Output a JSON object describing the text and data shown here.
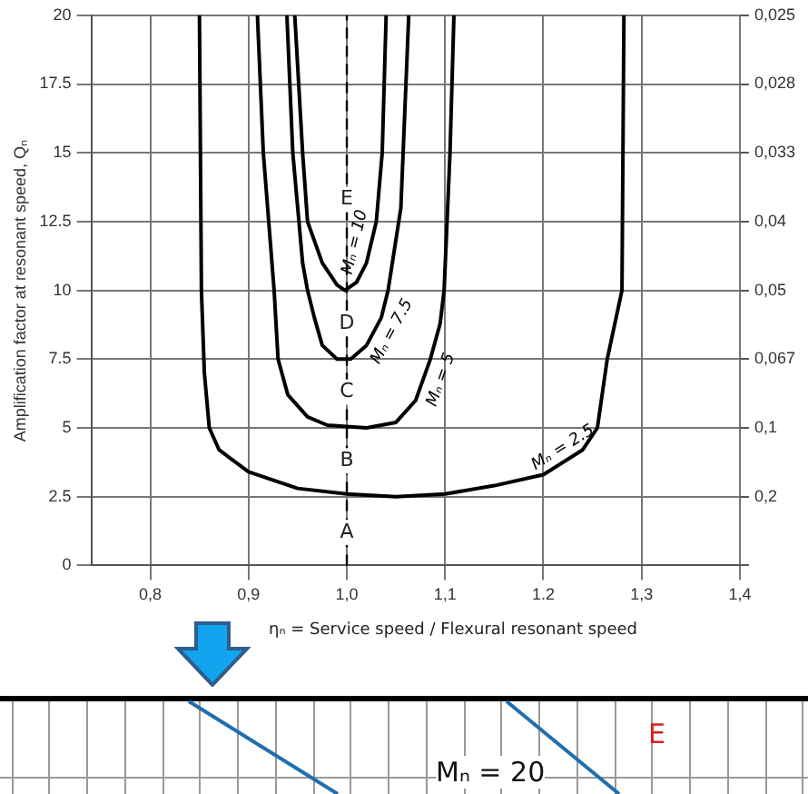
{
  "chart_data": {
    "type": "line",
    "xlabel": "ηₙ = Service speed / Flexural resonant speed",
    "ylabel": "Amplification factor at resonant speed, Qₙ",
    "xlim": [
      0.74,
      1.4
    ],
    "ylim": [
      0,
      20
    ],
    "xticks": [
      {
        "value": 0.8,
        "label": "0,8"
      },
      {
        "value": 0.9,
        "label": "0,9"
      },
      {
        "value": 1.0,
        "label": "1,0"
      },
      {
        "value": 1.1,
        "label": "1,1"
      },
      {
        "value": 1.2,
        "label": "1.2"
      },
      {
        "value": 1.3,
        "label": "1,3"
      },
      {
        "value": 1.4,
        "label": "1,4"
      }
    ],
    "yticks": [
      0,
      2.5,
      5,
      7.5,
      10,
      12.5,
      15,
      17.5,
      20
    ],
    "grid": true,
    "marker": "none",
    "legend": false,
    "series": [
      {
        "name": "Mₙ = 10",
        "color": "#000000",
        "x": [
          0.947,
          0.955,
          0.96,
          0.975,
          0.99,
          0.998,
          1.01,
          1.02,
          1.03,
          1.036,
          1.04
        ],
        "values": [
          20,
          15,
          12.5,
          11,
          10.2,
          10,
          10.3,
          11,
          12.5,
          15,
          20
        ]
      },
      {
        "name": "Mₙ = 7.5",
        "color": "#000000",
        "x": [
          0.939,
          0.945,
          0.955,
          0.96,
          0.967,
          0.975,
          0.99,
          1.004,
          1.02,
          1.035,
          1.042,
          1.055,
          1.063
        ],
        "values": [
          20,
          15,
          11,
          10,
          9,
          8,
          7.5,
          7.5,
          8,
          9,
          10,
          13,
          20
        ]
      },
      {
        "name": "Mₙ = 5",
        "color": "#000000",
        "x": [
          0.909,
          0.915,
          0.926,
          0.93,
          0.94,
          0.96,
          0.98,
          1.02,
          1.05,
          1.07,
          1.085,
          1.095,
          1.099,
          1.105,
          1.109
        ],
        "values": [
          20,
          15,
          10,
          7.5,
          6.2,
          5.4,
          5.1,
          5,
          5.2,
          6,
          7.5,
          8.8,
          10,
          15,
          20
        ]
      },
      {
        "name": "Mₙ = 2.5",
        "color": "#000000",
        "x": [
          0.85,
          0.852,
          0.855,
          0.86,
          0.87,
          0.9,
          0.95,
          1.0,
          1.05,
          1.1,
          1.15,
          1.2,
          1.24,
          1.255,
          1.265,
          1.28,
          1.282
        ],
        "values": [
          20,
          10,
          7,
          5,
          4.2,
          3.4,
          2.8,
          2.6,
          2.5,
          2.6,
          2.9,
          3.3,
          4.2,
          5,
          7.5,
          10,
          20
        ]
      }
    ],
    "ref_lines": [
      {
        "axis": "x",
        "value": 1.0,
        "color": "#000000",
        "line_style": "dashed"
      }
    ],
    "annotations": [
      {
        "text": "A",
        "y": 1.2
      },
      {
        "text": "B",
        "y": 3.8
      },
      {
        "text": "C",
        "y": 6.3
      },
      {
        "text": "D",
        "y": 8.8
      },
      {
        "text": "E",
        "y": 13.3
      },
      "E",
      "Mₙ = 20"
    ],
    "y2_categories": [
      "0,025",
      "0,028",
      "0,033",
      "0,04",
      "0,05",
      "0,067",
      "0,1",
      "0,2",
      null
    ]
  }
}
